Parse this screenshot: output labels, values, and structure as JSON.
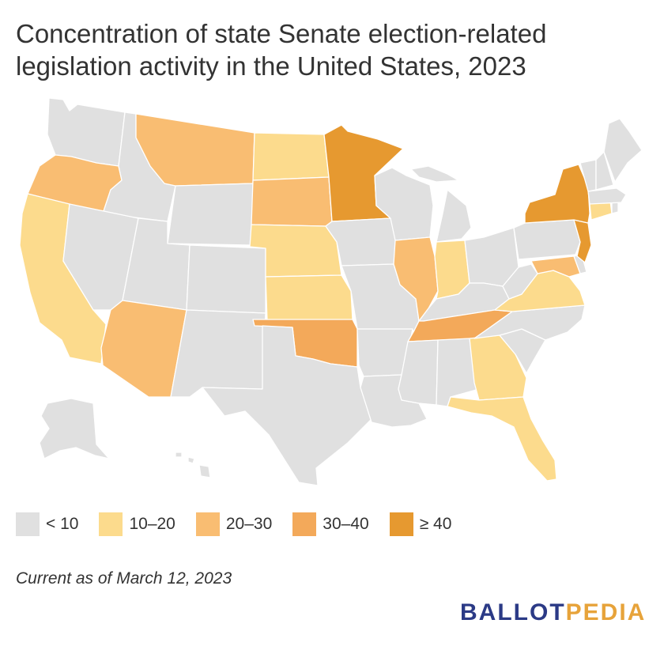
{
  "title": "Concentration of state Senate election-related legislation activity in the United States, 2023",
  "legend": [
    {
      "label": "< 10",
      "color": "#e0e0e0"
    },
    {
      "label": "10–20",
      "color": "#fcdb8d"
    },
    {
      "label": "20–30",
      "color": "#f9bd72"
    },
    {
      "label": "30–40",
      "color": "#f3a95a"
    },
    {
      "label": "≥ 40",
      "color": "#e69930"
    }
  ],
  "states": [
    {
      "name": "Washington",
      "bin": "< 10"
    },
    {
      "name": "Oregon",
      "bin": "20–30"
    },
    {
      "name": "California",
      "bin": "10–20"
    },
    {
      "name": "Idaho",
      "bin": "< 10"
    },
    {
      "name": "Nevada",
      "bin": "< 10"
    },
    {
      "name": "Montana",
      "bin": "20–30"
    },
    {
      "name": "Wyoming",
      "bin": "< 10"
    },
    {
      "name": "Utah",
      "bin": "< 10"
    },
    {
      "name": "Arizona",
      "bin": "20–30"
    },
    {
      "name": "Colorado",
      "bin": "< 10"
    },
    {
      "name": "New Mexico",
      "bin": "< 10"
    },
    {
      "name": "North Dakota",
      "bin": "10–20"
    },
    {
      "name": "South Dakota",
      "bin": "20–30"
    },
    {
      "name": "Nebraska",
      "bin": "10–20"
    },
    {
      "name": "Kansas",
      "bin": "10–20"
    },
    {
      "name": "Oklahoma",
      "bin": "30–40"
    },
    {
      "name": "Texas",
      "bin": "< 10"
    },
    {
      "name": "Minnesota",
      "bin": "≥ 40"
    },
    {
      "name": "Iowa",
      "bin": "< 10"
    },
    {
      "name": "Missouri",
      "bin": "< 10"
    },
    {
      "name": "Arkansas",
      "bin": "< 10"
    },
    {
      "name": "Louisiana",
      "bin": "< 10"
    },
    {
      "name": "Wisconsin",
      "bin": "< 10"
    },
    {
      "name": "Illinois",
      "bin": "20–30"
    },
    {
      "name": "Michigan",
      "bin": "< 10"
    },
    {
      "name": "Indiana",
      "bin": "10–20"
    },
    {
      "name": "Ohio",
      "bin": "< 10"
    },
    {
      "name": "Kentucky",
      "bin": "< 10"
    },
    {
      "name": "Tennessee",
      "bin": "30–40"
    },
    {
      "name": "Mississippi",
      "bin": "< 10"
    },
    {
      "name": "Alabama",
      "bin": "< 10"
    },
    {
      "name": "Georgia",
      "bin": "10–20"
    },
    {
      "name": "Florida",
      "bin": "10–20"
    },
    {
      "name": "South Carolina",
      "bin": "< 10"
    },
    {
      "name": "North Carolina",
      "bin": "< 10"
    },
    {
      "name": "Virginia",
      "bin": "10–20"
    },
    {
      "name": "West Virginia",
      "bin": "< 10"
    },
    {
      "name": "Pennsylvania",
      "bin": "< 10"
    },
    {
      "name": "New York",
      "bin": "≥ 40"
    },
    {
      "name": "New Jersey",
      "bin": "≥ 40"
    },
    {
      "name": "Maryland",
      "bin": "20–30"
    },
    {
      "name": "Delaware",
      "bin": "< 10"
    },
    {
      "name": "Connecticut",
      "bin": "10–20"
    },
    {
      "name": "Rhode Island",
      "bin": "< 10"
    },
    {
      "name": "Massachusetts",
      "bin": "< 10"
    },
    {
      "name": "Vermont",
      "bin": "< 10"
    },
    {
      "name": "New Hampshire",
      "bin": "< 10"
    },
    {
      "name": "Maine",
      "bin": "< 10"
    },
    {
      "name": "Alaska",
      "bin": "< 10"
    },
    {
      "name": "Hawaii",
      "bin": "< 10"
    }
  ],
  "footnote": "Current as of March 12, 2023",
  "logo": {
    "part1": "BALLOT",
    "part2": "PEDIA",
    "color1": "#2b3a86",
    "color2": "#e7a33a"
  }
}
